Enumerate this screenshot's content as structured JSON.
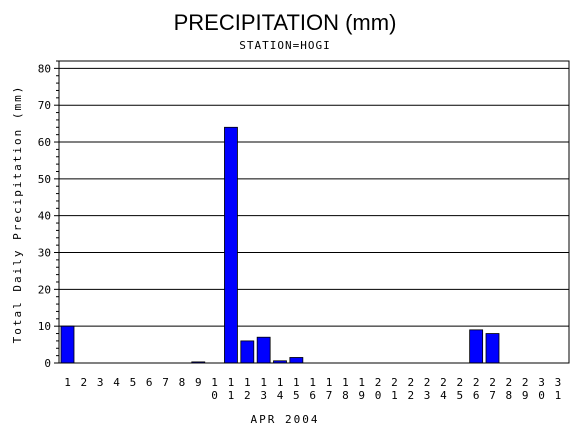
{
  "chart_data": {
    "type": "bar",
    "title": "PRECIPITATION (mm)",
    "subtitle": "STATION=HOGI",
    "xlabel": "APR 2004",
    "ylabel": "Total Daily Precipitation (mm)",
    "ylim": [
      0,
      82
    ],
    "yticks": [
      0,
      10,
      20,
      30,
      40,
      50,
      60,
      70,
      80
    ],
    "grid": true,
    "bar_color": "#0000ff",
    "categories": [
      "1",
      "2",
      "3",
      "4",
      "5",
      "6",
      "7",
      "8",
      "9",
      "10",
      "11",
      "12",
      "13",
      "14",
      "15",
      "16",
      "17",
      "18",
      "19",
      "20",
      "21",
      "22",
      "23",
      "24",
      "25",
      "26",
      "27",
      "28",
      "29",
      "30",
      "31"
    ],
    "values": [
      10,
      0,
      0,
      0,
      0,
      0,
      0,
      0,
      0.3,
      0,
      64,
      6,
      7,
      0.6,
      1.5,
      0,
      0,
      0,
      0,
      0,
      0,
      0,
      0,
      0,
      0,
      9,
      8,
      0,
      0,
      0,
      0
    ]
  }
}
